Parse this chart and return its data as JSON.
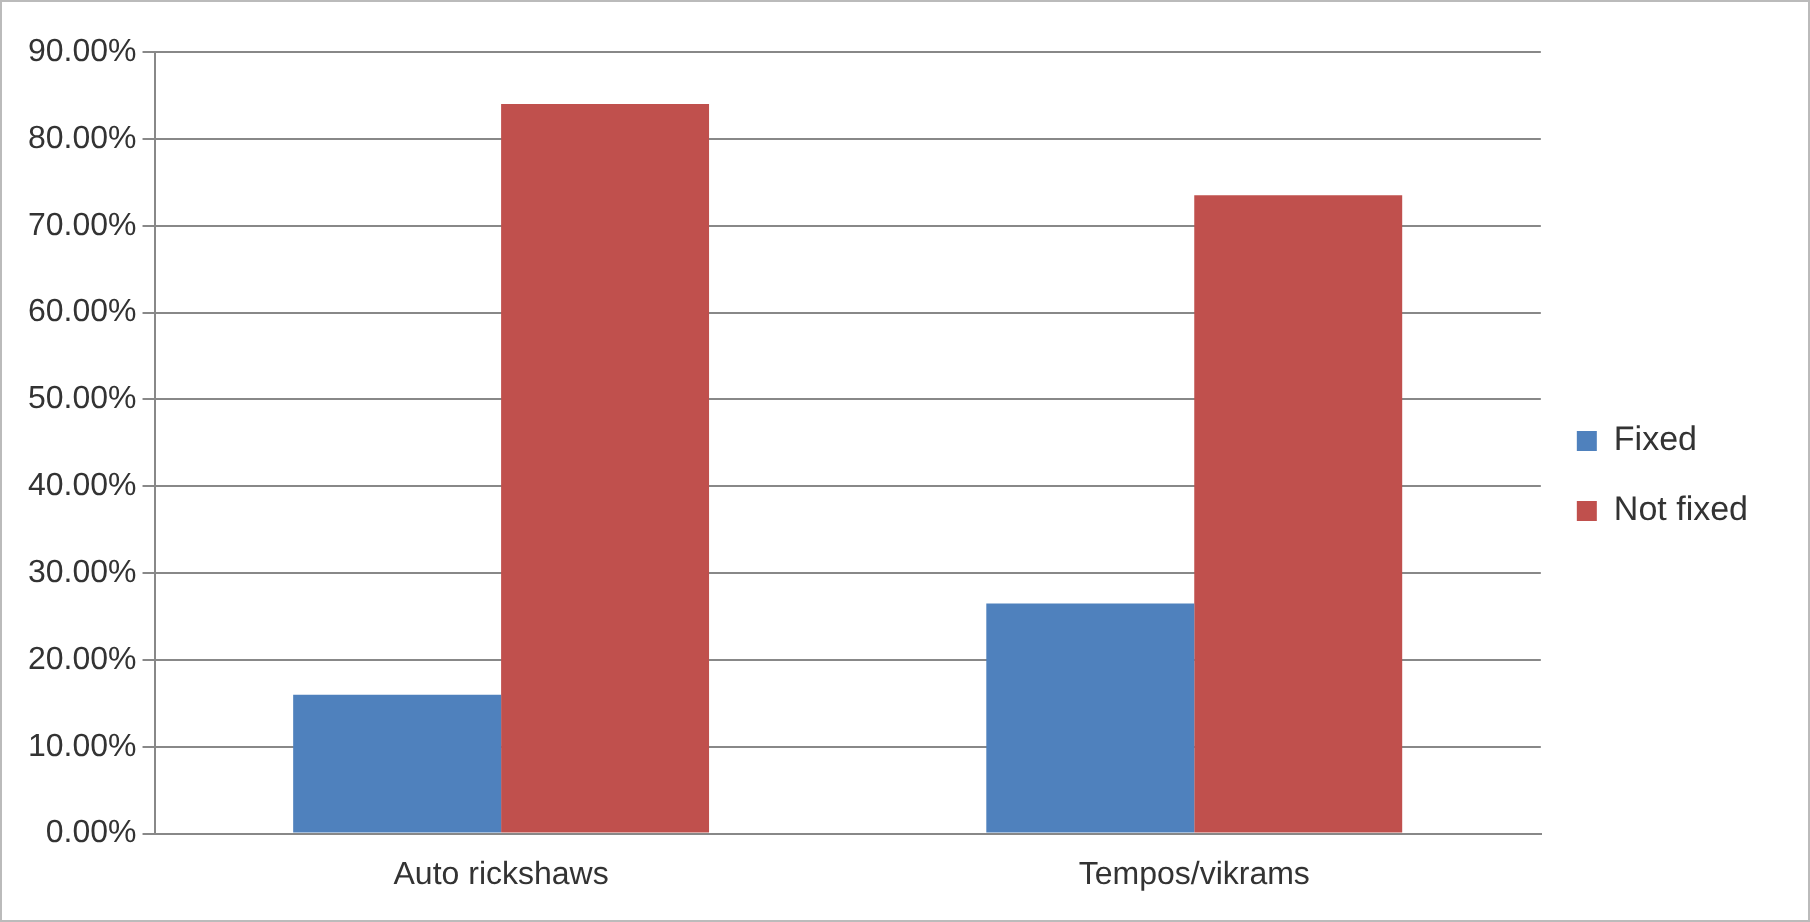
{
  "chart_data": {
    "type": "bar",
    "categories": [
      "Auto rickshaws",
      "Tempos/vikrams"
    ],
    "series": [
      {
        "name": "Fixed",
        "color": "#4f81bd",
        "values": [
          16,
          26.5
        ]
      },
      {
        "name": "Not fixed",
        "color": "#c0504d",
        "values": [
          84,
          73.5
        ]
      }
    ],
    "ylim": [
      0,
      90
    ],
    "yticks": [
      {
        "value": 0,
        "label": "0.00%"
      },
      {
        "value": 10,
        "label": "10.00%"
      },
      {
        "value": 20,
        "label": "20.00%"
      },
      {
        "value": 30,
        "label": "30.00%"
      },
      {
        "value": 40,
        "label": "40.00%"
      },
      {
        "value": 50,
        "label": "50.00%"
      },
      {
        "value": 60,
        "label": "60.00%"
      },
      {
        "value": 70,
        "label": "70.00%"
      },
      {
        "value": 80,
        "label": "80.00%"
      },
      {
        "value": 90,
        "label": "90.00%"
      }
    ],
    "grid": "y",
    "legend": "right"
  }
}
